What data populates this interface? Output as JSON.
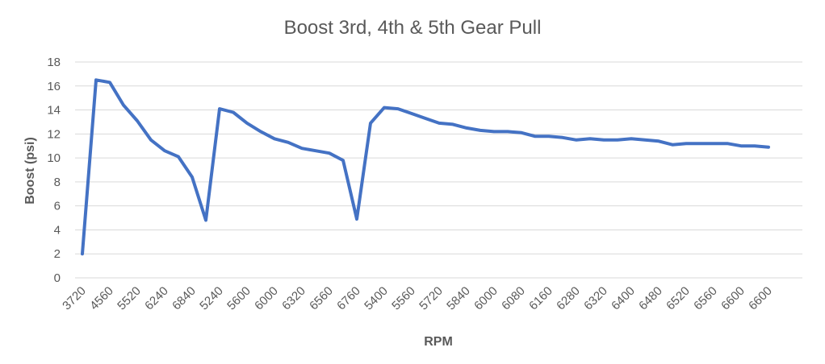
{
  "chart_data": {
    "type": "line",
    "title": "Boost 3rd, 4th & 5th Gear Pull",
    "xlabel": "RPM",
    "ylabel": "Boost (psi)",
    "ylim": [
      0,
      18
    ],
    "yticks": [
      "0",
      "2",
      "4",
      "6",
      "8",
      "10",
      "12",
      "14",
      "16",
      "18"
    ],
    "grid": true,
    "legend": "none",
    "color": "#4472c4",
    "x_tick_labels": [
      "3720",
      "4560",
      "5520",
      "6240",
      "6840",
      "5240",
      "5600",
      "6000",
      "6320",
      "6560",
      "6760",
      "5400",
      "5560",
      "5720",
      "5840",
      "6000",
      "6080",
      "6160",
      "6280",
      "6320",
      "6400",
      "6480",
      "6520",
      "6560",
      "6600",
      "6600"
    ],
    "series": [
      {
        "values": [
          2.0,
          16.5,
          16.3,
          14.4,
          13.1,
          11.5,
          10.6,
          10.1,
          8.4,
          4.8,
          14.1,
          13.8,
          12.9,
          12.2,
          11.6,
          11.3,
          10.8,
          10.6,
          10.4,
          9.8,
          4.9,
          12.9,
          14.2,
          14.1,
          13.7,
          13.3,
          12.9,
          12.8,
          12.5,
          12.3,
          12.2,
          12.2,
          12.1,
          11.8,
          11.8,
          11.7,
          11.5,
          11.6,
          11.5,
          11.5,
          11.6,
          11.5,
          11.4,
          11.1,
          11.2,
          11.2,
          11.2,
          11.2,
          11.0,
          11.0,
          10.9
        ]
      }
    ]
  }
}
